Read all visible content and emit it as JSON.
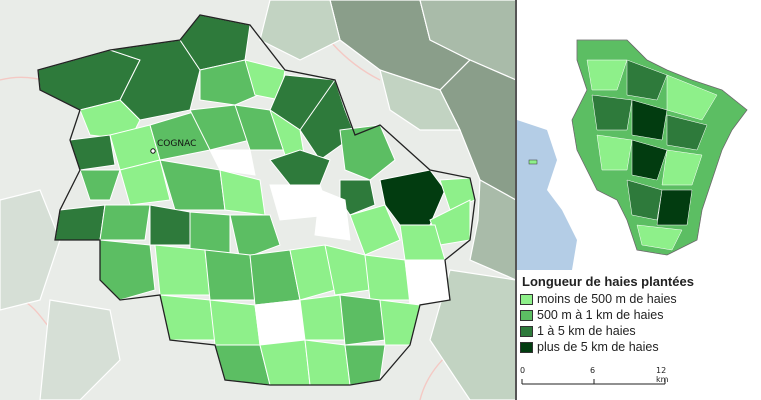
{
  "map": {
    "town": "COGNAC"
  },
  "legend": {
    "title": "Longueur de haies plantées",
    "items": [
      {
        "label": "moins de 500 m de haies",
        "color": "#8ef08a"
      },
      {
        "label": "500 m à 1 km de haies",
        "color": "#5cbe63"
      },
      {
        "label": "1 à 5 km de haies",
        "color": "#2e7a3b"
      },
      {
        "label": "plus de 5 km de haies",
        "color": "#023c10"
      }
    ]
  },
  "scalebar": {
    "ticks": [
      "0",
      "6",
      "12 km"
    ]
  },
  "colors": {
    "class_1": "#8ef08a",
    "class_2": "#5cbe63",
    "class_3": "#2e7a3b",
    "class_4": "#023c10",
    "outside_dark": "#8a9e8a",
    "outside_light": "#c2d3c2",
    "basemap": "#e9ece8",
    "water": "#b4cde6"
  }
}
